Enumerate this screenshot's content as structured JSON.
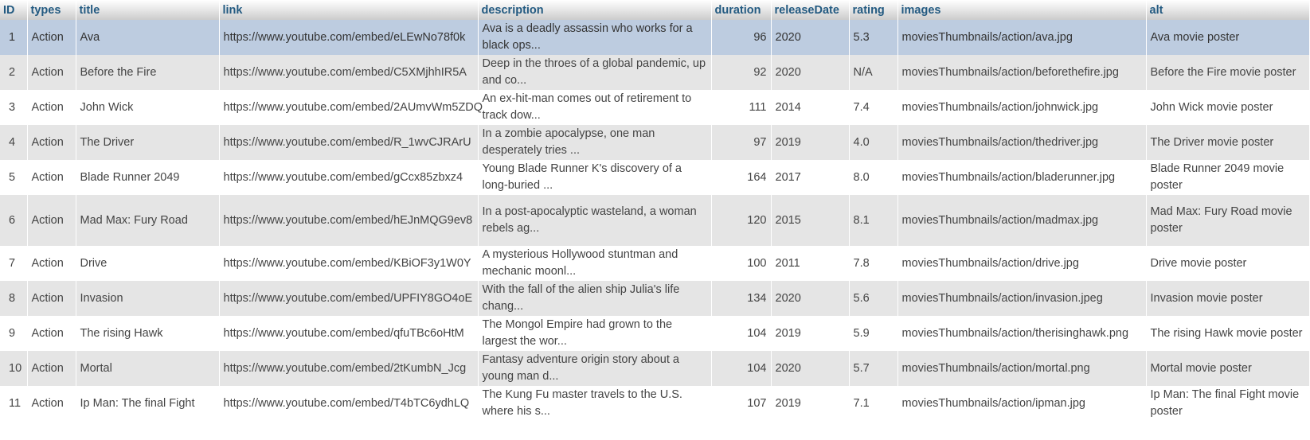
{
  "table": {
    "columns": [
      "ID",
      "types",
      "title",
      "link",
      "description",
      "duration",
      "releaseDate",
      "rating",
      "images",
      "alt"
    ],
    "rows": [
      {
        "id": "1",
        "types": "Action",
        "title": "Ava",
        "link": "https://www.youtube.com/embed/eLEwNo78f0k",
        "description": "Ava is a deadly assassin who works for a black ops...",
        "duration": "96",
        "releaseDate": "2020",
        "rating": "5.3",
        "images": "moviesThumbnails/action/ava.jpg",
        "alt": "Ava movie poster",
        "selected": true
      },
      {
        "id": "2",
        "types": "Action",
        "title": "Before the Fire",
        "link": "https://www.youtube.com/embed/C5XMjhhIR5A",
        "description": "Deep in the throes of a global pandemic, up and co...",
        "duration": "92",
        "releaseDate": "2020",
        "rating": "N/A",
        "images": "moviesThumbnails/action/beforethefire.jpg",
        "alt": "Before the Fire movie poster"
      },
      {
        "id": "3",
        "types": "Action",
        "title": "John Wick",
        "link": "https://www.youtube.com/embed/2AUmvWm5ZDQ",
        "description": "An ex-hit-man comes out of retirement to track dow...",
        "duration": "111",
        "releaseDate": "2014",
        "rating": "7.4",
        "images": "moviesThumbnails/action/johnwick.jpg",
        "alt": "John Wick movie poster"
      },
      {
        "id": "4",
        "types": "Action",
        "title": "The Driver",
        "link": "https://www.youtube.com/embed/R_1wvCJRArU",
        "description": "In a zombie apocalypse, one man desperately tries ...",
        "duration": "97",
        "releaseDate": "2019",
        "rating": "4.0",
        "images": "moviesThumbnails/action/thedriver.jpg",
        "alt": "The Driver movie poster"
      },
      {
        "id": "5",
        "types": "Action",
        "title": "Blade Runner 2049",
        "link": "https://www.youtube.com/embed/gCcx85zbxz4",
        "description": "Young Blade Runner K's discovery of a long-buried ...",
        "duration": "164",
        "releaseDate": "2017",
        "rating": "8.0",
        "images": "moviesThumbnails/action/bladerunner.jpg",
        "alt": "Blade Runner 2049 movie poster"
      },
      {
        "id": "6",
        "types": "Action",
        "title": "Mad Max: Fury Road",
        "link": "https://www.youtube.com/embed/hEJnMQG9ev8",
        "description": "In a post-apocalyptic wasteland, a woman rebels ag...",
        "duration": "120",
        "releaseDate": "2015",
        "rating": "8.1",
        "images": "moviesThumbnails/action/madmax.jpg",
        "alt": "Mad Max: Fury Road movie poster",
        "tall": true
      },
      {
        "id": "7",
        "types": "Action",
        "title": "Drive",
        "link": "https://www.youtube.com/embed/KBiOF3y1W0Y",
        "description": "A mysterious Hollywood stuntman and mechanic moonl...",
        "duration": "100",
        "releaseDate": "2011",
        "rating": "7.8",
        "images": "moviesThumbnails/action/drive.jpg",
        "alt": "Drive movie poster"
      },
      {
        "id": "8",
        "types": "Action",
        "title": "Invasion",
        "link": "https://www.youtube.com/embed/UPFIY8GO4oE",
        "description": "With the fall of the alien ship Julia's life chang...",
        "duration": "134",
        "releaseDate": "2020",
        "rating": "5.6",
        "images": "moviesThumbnails/action/invasion.jpeg",
        "alt": "Invasion movie poster"
      },
      {
        "id": "9",
        "types": "Action",
        "title": "The rising Hawk",
        "link": "https://www.youtube.com/embed/qfuTBc6oHtM",
        "description": "The Mongol Empire had grown to the largest the wor...",
        "duration": "104",
        "releaseDate": "2019",
        "rating": "5.9",
        "images": "moviesThumbnails/action/therisinghawk.png",
        "alt": "The rising Hawk movie poster"
      },
      {
        "id": "10",
        "types": "Action",
        "title": "Mortal",
        "link": "https://www.youtube.com/embed/2tKumbN_Jcg",
        "description": "Fantasy adventure origin story about a young man d...",
        "duration": "104",
        "releaseDate": "2020",
        "rating": "5.7",
        "images": "moviesThumbnails/action/mortal.png",
        "alt": "Mortal movie poster"
      },
      {
        "id": "11",
        "types": "Action",
        "title": "Ip Man: The final Fight",
        "link": "https://www.youtube.com/embed/T4bTC6ydhLQ",
        "description": "The Kung Fu master travels to the U.S. where his s...",
        "duration": "107",
        "releaseDate": "2019",
        "rating": "7.1",
        "images": "moviesThumbnails/action/ipman.jpg",
        "alt": "Ip Man: The final Fight movie poster"
      }
    ]
  },
  "colors": {
    "header_text": "#235a81",
    "row_odd": "#e5e5e5",
    "row_even": "#ffffff",
    "row_selected": "#bdcce0"
  }
}
